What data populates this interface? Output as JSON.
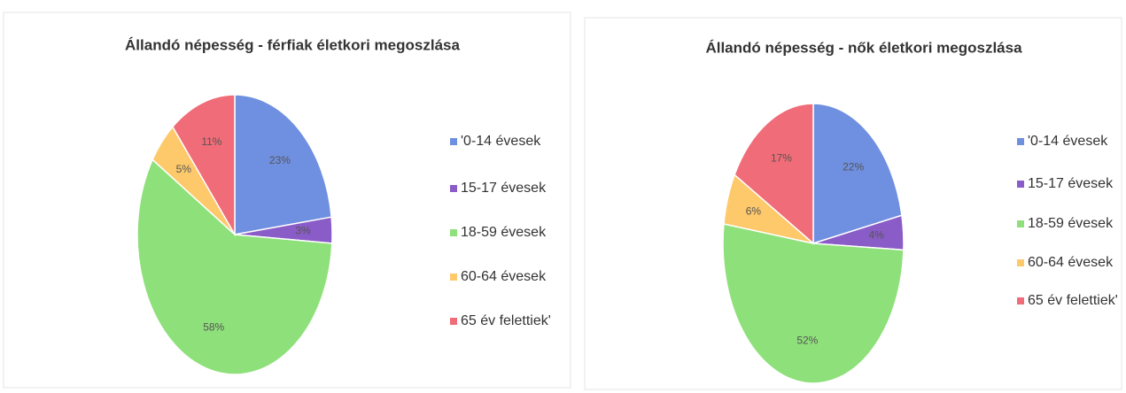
{
  "chart_data": [
    {
      "type": "pie",
      "title": "Állandó népesség - férfiak életkori megoszlása",
      "categories": [
        "'0-14 évesek",
        "15-17 évesek",
        "18-59 évesek",
        "60-64 évesek",
        "65 év felettiek'"
      ],
      "values": [
        23,
        3,
        58,
        5,
        11
      ],
      "value_labels": [
        "23%",
        "3%",
        "58%",
        "5%",
        "11%"
      ],
      "colors": [
        "#6f8fe0",
        "#8a5cc7",
        "#8ee07a",
        "#fdc96a",
        "#f06c78"
      ],
      "legend": "right"
    },
    {
      "type": "pie",
      "title": "Állandó népesség - nők életkori megoszlása",
      "categories": [
        "'0-14 évesek",
        "15-17 évesek",
        "18-59 évesek",
        "60-64 évesek",
        "65 év felettiek'"
      ],
      "values": [
        22,
        4,
        52,
        6,
        17
      ],
      "value_labels": [
        "22%",
        "4%",
        "52%",
        "6%",
        "17%"
      ],
      "colors": [
        "#6f8fe0",
        "#8a5cc7",
        "#8ee07a",
        "#fdc96a",
        "#f06c78"
      ],
      "legend": "right"
    }
  ]
}
